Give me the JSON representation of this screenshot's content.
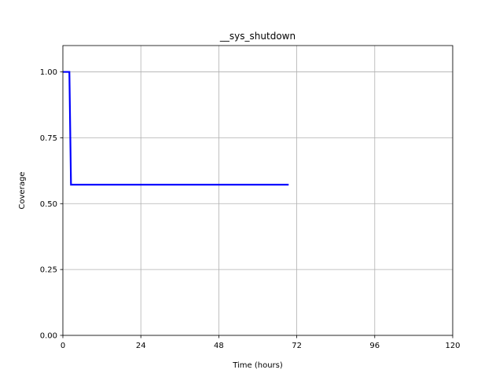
{
  "chart_data": {
    "type": "line",
    "title": "__sys_shutdown",
    "xlabel": "Time (hours)",
    "ylabel": "Coverage",
    "xlim": [
      0,
      120
    ],
    "ylim": [
      0,
      1.1
    ],
    "xticks": [
      0,
      24,
      48,
      72,
      96,
      120
    ],
    "xtick_labels": [
      "0",
      "24",
      "48",
      "72",
      "96",
      "120"
    ],
    "yticks": [
      0,
      0.25,
      0.5,
      0.75,
      1.0
    ],
    "ytick_labels": [
      "0.00",
      "0.25",
      "0.50",
      "0.75",
      "1.00"
    ],
    "grid": true,
    "series": [
      {
        "color": "#0000ff",
        "x": [
          0,
          2,
          2.5,
          69.5
        ],
        "y": [
          1.0,
          1.0,
          0.572,
          0.572
        ]
      }
    ]
  }
}
